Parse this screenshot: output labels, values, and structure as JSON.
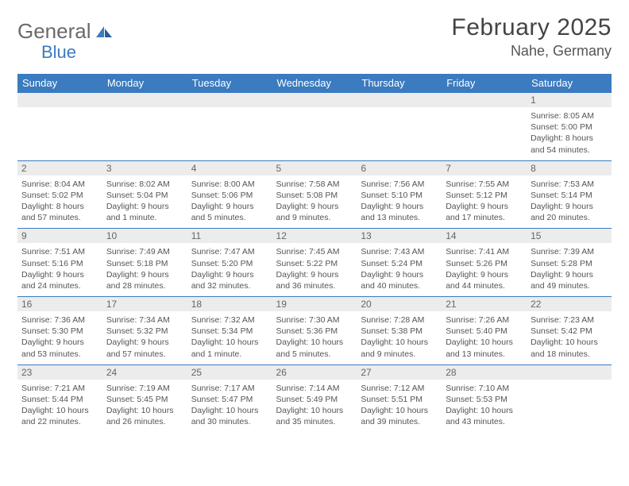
{
  "brand": {
    "part1": "General",
    "part2": "Blue"
  },
  "title": "February 2025",
  "location": "Nahe, Germany",
  "colors": {
    "accent": "#3b7bbf",
    "header_text": "#ffffff",
    "daynum_bg": "#ececec",
    "body_text": "#555555",
    "title_text": "#444444"
  },
  "dayNames": [
    "Sunday",
    "Monday",
    "Tuesday",
    "Wednesday",
    "Thursday",
    "Friday",
    "Saturday"
  ],
  "weeks": [
    [
      null,
      null,
      null,
      null,
      null,
      null,
      {
        "n": "1",
        "sr": "Sunrise: 8:05 AM",
        "ss": "Sunset: 5:00 PM",
        "dl": "Daylight: 8 hours and 54 minutes."
      }
    ],
    [
      {
        "n": "2",
        "sr": "Sunrise: 8:04 AM",
        "ss": "Sunset: 5:02 PM",
        "dl": "Daylight: 8 hours and 57 minutes."
      },
      {
        "n": "3",
        "sr": "Sunrise: 8:02 AM",
        "ss": "Sunset: 5:04 PM",
        "dl": "Daylight: 9 hours and 1 minute."
      },
      {
        "n": "4",
        "sr": "Sunrise: 8:00 AM",
        "ss": "Sunset: 5:06 PM",
        "dl": "Daylight: 9 hours and 5 minutes."
      },
      {
        "n": "5",
        "sr": "Sunrise: 7:58 AM",
        "ss": "Sunset: 5:08 PM",
        "dl": "Daylight: 9 hours and 9 minutes."
      },
      {
        "n": "6",
        "sr": "Sunrise: 7:56 AM",
        "ss": "Sunset: 5:10 PM",
        "dl": "Daylight: 9 hours and 13 minutes."
      },
      {
        "n": "7",
        "sr": "Sunrise: 7:55 AM",
        "ss": "Sunset: 5:12 PM",
        "dl": "Daylight: 9 hours and 17 minutes."
      },
      {
        "n": "8",
        "sr": "Sunrise: 7:53 AM",
        "ss": "Sunset: 5:14 PM",
        "dl": "Daylight: 9 hours and 20 minutes."
      }
    ],
    [
      {
        "n": "9",
        "sr": "Sunrise: 7:51 AM",
        "ss": "Sunset: 5:16 PM",
        "dl": "Daylight: 9 hours and 24 minutes."
      },
      {
        "n": "10",
        "sr": "Sunrise: 7:49 AM",
        "ss": "Sunset: 5:18 PM",
        "dl": "Daylight: 9 hours and 28 minutes."
      },
      {
        "n": "11",
        "sr": "Sunrise: 7:47 AM",
        "ss": "Sunset: 5:20 PM",
        "dl": "Daylight: 9 hours and 32 minutes."
      },
      {
        "n": "12",
        "sr": "Sunrise: 7:45 AM",
        "ss": "Sunset: 5:22 PM",
        "dl": "Daylight: 9 hours and 36 minutes."
      },
      {
        "n": "13",
        "sr": "Sunrise: 7:43 AM",
        "ss": "Sunset: 5:24 PM",
        "dl": "Daylight: 9 hours and 40 minutes."
      },
      {
        "n": "14",
        "sr": "Sunrise: 7:41 AM",
        "ss": "Sunset: 5:26 PM",
        "dl": "Daylight: 9 hours and 44 minutes."
      },
      {
        "n": "15",
        "sr": "Sunrise: 7:39 AM",
        "ss": "Sunset: 5:28 PM",
        "dl": "Daylight: 9 hours and 49 minutes."
      }
    ],
    [
      {
        "n": "16",
        "sr": "Sunrise: 7:36 AM",
        "ss": "Sunset: 5:30 PM",
        "dl": "Daylight: 9 hours and 53 minutes."
      },
      {
        "n": "17",
        "sr": "Sunrise: 7:34 AM",
        "ss": "Sunset: 5:32 PM",
        "dl": "Daylight: 9 hours and 57 minutes."
      },
      {
        "n": "18",
        "sr": "Sunrise: 7:32 AM",
        "ss": "Sunset: 5:34 PM",
        "dl": "Daylight: 10 hours and 1 minute."
      },
      {
        "n": "19",
        "sr": "Sunrise: 7:30 AM",
        "ss": "Sunset: 5:36 PM",
        "dl": "Daylight: 10 hours and 5 minutes."
      },
      {
        "n": "20",
        "sr": "Sunrise: 7:28 AM",
        "ss": "Sunset: 5:38 PM",
        "dl": "Daylight: 10 hours and 9 minutes."
      },
      {
        "n": "21",
        "sr": "Sunrise: 7:26 AM",
        "ss": "Sunset: 5:40 PM",
        "dl": "Daylight: 10 hours and 13 minutes."
      },
      {
        "n": "22",
        "sr": "Sunrise: 7:23 AM",
        "ss": "Sunset: 5:42 PM",
        "dl": "Daylight: 10 hours and 18 minutes."
      }
    ],
    [
      {
        "n": "23",
        "sr": "Sunrise: 7:21 AM",
        "ss": "Sunset: 5:44 PM",
        "dl": "Daylight: 10 hours and 22 minutes."
      },
      {
        "n": "24",
        "sr": "Sunrise: 7:19 AM",
        "ss": "Sunset: 5:45 PM",
        "dl": "Daylight: 10 hours and 26 minutes."
      },
      {
        "n": "25",
        "sr": "Sunrise: 7:17 AM",
        "ss": "Sunset: 5:47 PM",
        "dl": "Daylight: 10 hours and 30 minutes."
      },
      {
        "n": "26",
        "sr": "Sunrise: 7:14 AM",
        "ss": "Sunset: 5:49 PM",
        "dl": "Daylight: 10 hours and 35 minutes."
      },
      {
        "n": "27",
        "sr": "Sunrise: 7:12 AM",
        "ss": "Sunset: 5:51 PM",
        "dl": "Daylight: 10 hours and 39 minutes."
      },
      {
        "n": "28",
        "sr": "Sunrise: 7:10 AM",
        "ss": "Sunset: 5:53 PM",
        "dl": "Daylight: 10 hours and 43 minutes."
      },
      null
    ]
  ]
}
